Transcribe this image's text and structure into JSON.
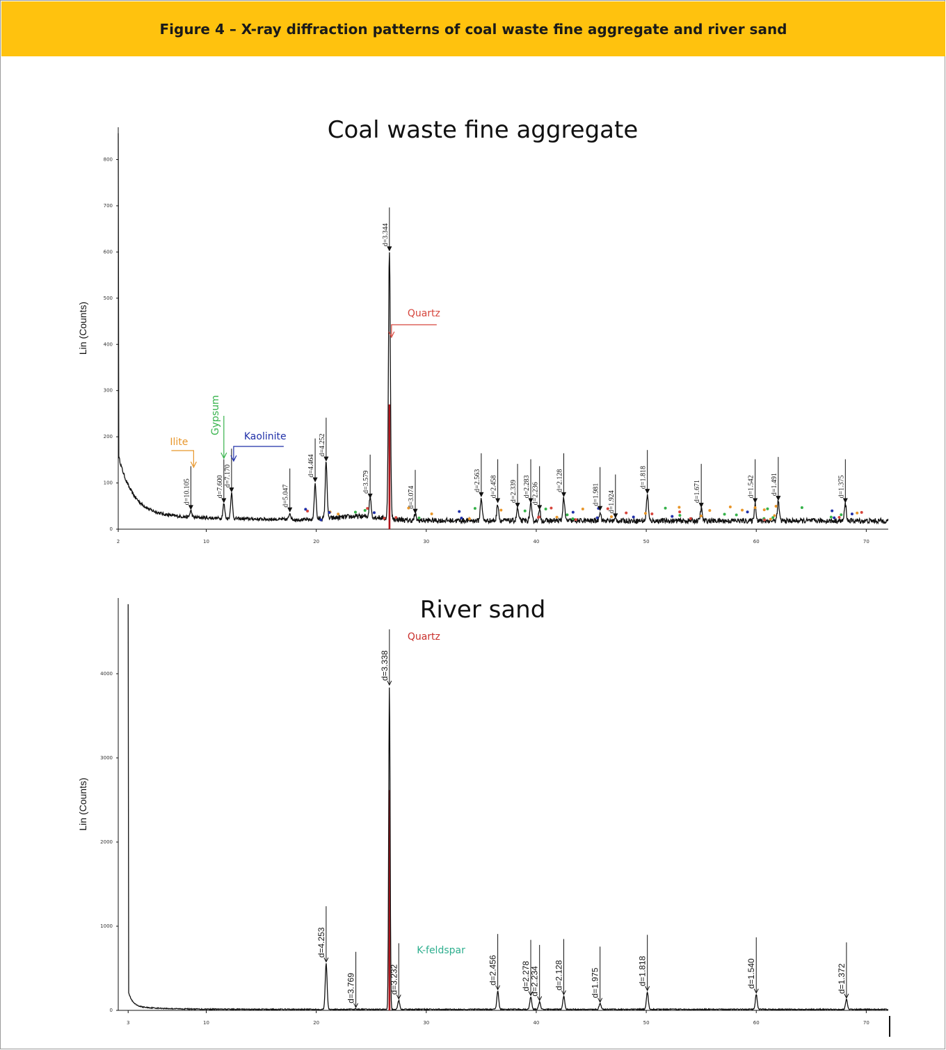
{
  "figure_title": "Figure 4 – X-ray diffraction patterns of coal waste fine aggregate and river sand",
  "colors": {
    "banner": "#FFC20E",
    "ilite": "#E8962A",
    "gypsum": "#35B24A",
    "kaolinite": "#1F2FA8",
    "quartz_coal": "#D6453C",
    "quartz_sand": "#C9302C",
    "k_feldspar": "#2DAE8E",
    "trace": "#111111",
    "quartz_stick": "#B0141B"
  },
  "chart_data": [
    {
      "type": "line",
      "title": "Coal waste fine aggregate",
      "ylabel": "Lin (Counts)",
      "xlabel": "",
      "xlim": [
        2,
        72
      ],
      "ylim": [
        0,
        870
      ],
      "x_ticks": [
        "2",
        "10",
        "20",
        "30",
        "40",
        "50",
        "60",
        "70"
      ],
      "y_ticks": [
        "0",
        "100",
        "200",
        "300",
        "400",
        "500",
        "600",
        "700",
        "800"
      ],
      "baseline": 18,
      "peaks": [
        {
          "x": 8.6,
          "y": 40,
          "label": "d=10.105"
        },
        {
          "x": 11.6,
          "y": 55,
          "label": "d=7.600"
        },
        {
          "x": 12.3,
          "y": 78,
          "label": "d=7.170"
        },
        {
          "x": 17.6,
          "y": 35,
          "label": "d=5.047"
        },
        {
          "x": 19.9,
          "y": 100,
          "label": "d=4.464"
        },
        {
          "x": 20.9,
          "y": 145,
          "label": "d=4.252"
        },
        {
          "x": 24.9,
          "y": 65,
          "label": "d=3.579"
        },
        {
          "x": 26.65,
          "y": 600,
          "label": "d=3.344"
        },
        {
          "x": 29.0,
          "y": 32,
          "label": "d=3.074"
        },
        {
          "x": 35.0,
          "y": 68,
          "label": "d=2.563"
        },
        {
          "x": 36.5,
          "y": 55,
          "label": "d=2.458"
        },
        {
          "x": 38.3,
          "y": 45,
          "label": "d=2.339"
        },
        {
          "x": 39.5,
          "y": 55,
          "label": "d=2.283"
        },
        {
          "x": 40.3,
          "y": 40,
          "label": "d=2.236"
        },
        {
          "x": 42.5,
          "y": 68,
          "label": "d=2.128"
        },
        {
          "x": 45.8,
          "y": 38,
          "label": "d=1.981"
        },
        {
          "x": 47.2,
          "y": 22,
          "label": "d=1.924"
        },
        {
          "x": 50.1,
          "y": 75,
          "label": "d=1.818"
        },
        {
          "x": 55.0,
          "y": 45,
          "label": "d=1.671"
        },
        {
          "x": 59.9,
          "y": 55,
          "label": "d=1.542"
        },
        {
          "x": 62.0,
          "y": 60,
          "label": "d=1.491"
        },
        {
          "x": 68.1,
          "y": 55,
          "label": "d=1.375"
        }
      ],
      "annotations": [
        {
          "text": "Ilite",
          "x": 8.6,
          "color_key": "ilite"
        },
        {
          "text": "Gypsum",
          "x": 11.6,
          "color_key": "gypsum"
        },
        {
          "text": "Kaolinite",
          "x": 12.3,
          "color_key": "kaolinite"
        },
        {
          "text": "Quartz",
          "x": 26.65,
          "color_key": "quartz_coal"
        }
      ]
    },
    {
      "type": "line",
      "title": "River sand",
      "ylabel": "Lin (Counts)",
      "xlabel": "",
      "xlim": [
        2,
        72
      ],
      "ylim": [
        0,
        4900
      ],
      "x_ticks": [
        "3",
        "10",
        "20",
        "30",
        "40",
        "50",
        "60",
        "70"
      ],
      "y_ticks": [
        "0",
        "1000",
        "2000",
        "3000",
        "4000"
      ],
      "baseline": 12,
      "peaks": [
        {
          "x": 20.9,
          "y": 560,
          "label": "d=4.253"
        },
        {
          "x": 23.6,
          "y": 18,
          "label": "d=3.769"
        },
        {
          "x": 26.65,
          "y": 3850,
          "label": "d=3.338"
        },
        {
          "x": 27.5,
          "y": 120,
          "label": "d=3.232"
        },
        {
          "x": 36.5,
          "y": 230,
          "label": "d=2.456"
        },
        {
          "x": 39.5,
          "y": 160,
          "label": "d=2.278"
        },
        {
          "x": 40.3,
          "y": 100,
          "label": "d=2.234"
        },
        {
          "x": 42.5,
          "y": 170,
          "label": "d=2.128"
        },
        {
          "x": 45.8,
          "y": 80,
          "label": "d=1.975"
        },
        {
          "x": 50.1,
          "y": 220,
          "label": "d=1.818"
        },
        {
          "x": 60.0,
          "y": 190,
          "label": "d=1.540"
        },
        {
          "x": 68.2,
          "y": 130,
          "label": "d=1.372"
        }
      ],
      "annotations": [
        {
          "text": "Quartz",
          "x": 26.65,
          "color_key": "quartz_sand"
        },
        {
          "text": "K-feldspar",
          "x": 27.5,
          "color_key": "k_feldspar"
        }
      ]
    }
  ]
}
